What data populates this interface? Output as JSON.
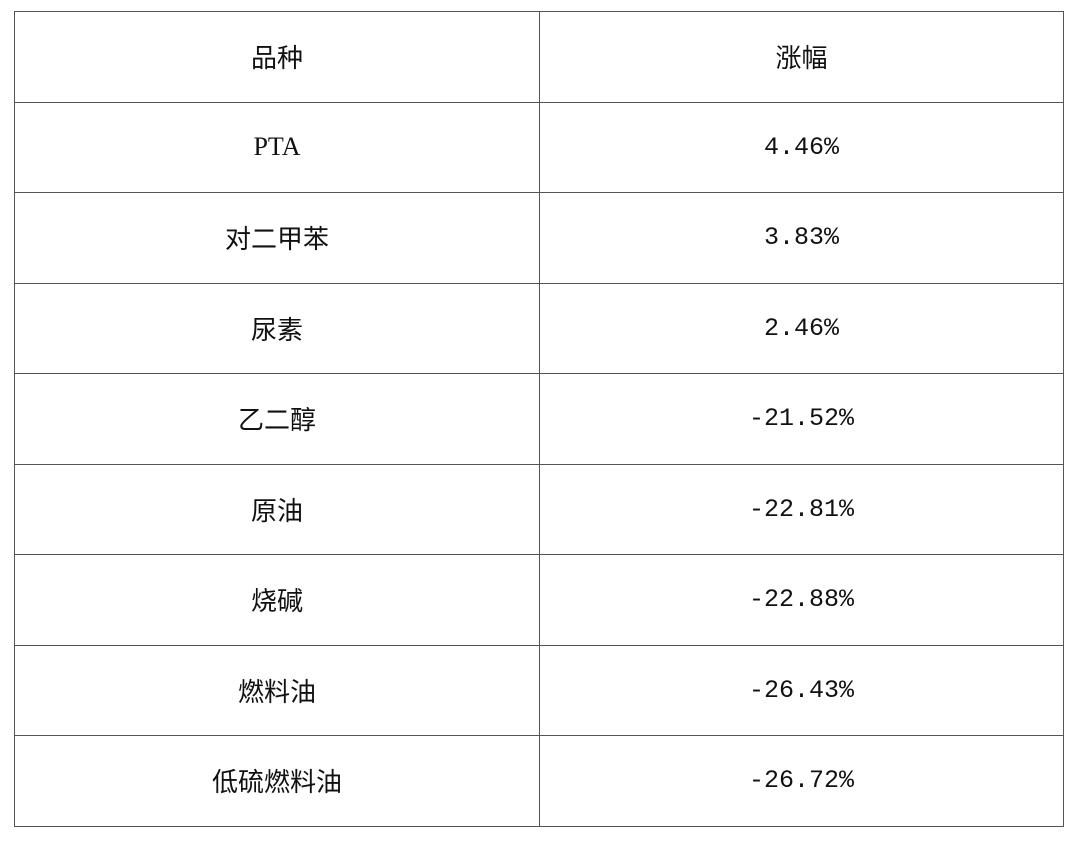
{
  "table": {
    "headers": [
      "品种",
      "涨幅"
    ],
    "rows": [
      [
        "PTA",
        "4.46%"
      ],
      [
        "对二甲苯",
        "3.83%"
      ],
      [
        "尿素",
        "2.46%"
      ],
      [
        "乙二醇",
        "-21.52%"
      ],
      [
        "原油",
        "-22.81%"
      ],
      [
        "烧碱",
        "-22.88%"
      ],
      [
        "燃料油",
        "-26.43%"
      ],
      [
        "低硫燃料油",
        "-26.72%"
      ]
    ]
  }
}
